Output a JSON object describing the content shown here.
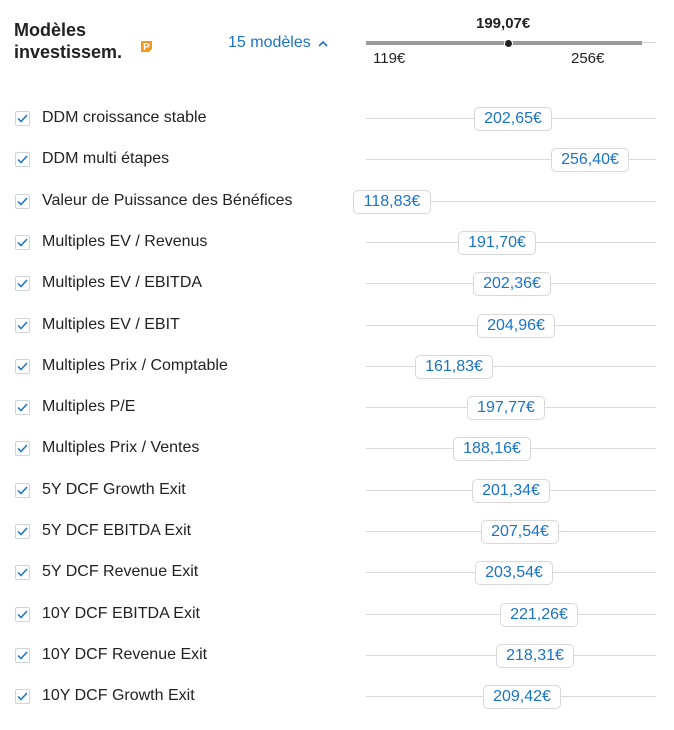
{
  "header": {
    "title_line1": "Modèles",
    "title_line2": "investissem.",
    "pro_badge_icon": "pro-badge-icon",
    "models_toggle_label": "15 modèles",
    "summary_value": "199,07€",
    "range_min": "119€",
    "range_max": "256€"
  },
  "colors": {
    "accent": "#1a73c8",
    "badge": "#f39a1e"
  },
  "models": [
    {
      "label": "DDM croissance stable",
      "value": "202,65€",
      "amount": 202.65,
      "checked": true
    },
    {
      "label": "DDM multi étapes",
      "value": "256,40€",
      "amount": 256.4,
      "checked": true
    },
    {
      "label": "Valeur de Puissance des Bénéfices",
      "value": "118,83€",
      "amount": 118.83,
      "checked": true
    },
    {
      "label": "Multiples EV / Revenus",
      "value": "191,70€",
      "amount": 191.7,
      "checked": true
    },
    {
      "label": "Multiples EV / EBITDA",
      "value": "202,36€",
      "amount": 202.36,
      "checked": true
    },
    {
      "label": "Multiples EV / EBIT",
      "value": "204,96€",
      "amount": 204.96,
      "checked": true
    },
    {
      "label": "Multiples Prix / Comptable",
      "value": "161,83€",
      "amount": 161.83,
      "checked": true
    },
    {
      "label": "Multiples P/E",
      "value": "197,77€",
      "amount": 197.77,
      "checked": true
    },
    {
      "label": "Multiples Prix / Ventes",
      "value": "188,16€",
      "amount": 188.16,
      "checked": true
    },
    {
      "label": "5Y DCF Growth Exit",
      "value": "201,34€",
      "amount": 201.34,
      "checked": true
    },
    {
      "label": "5Y DCF EBITDA Exit",
      "value": "207,54€",
      "amount": 207.54,
      "checked": true
    },
    {
      "label": "5Y DCF Revenue Exit",
      "value": "203,54€",
      "amount": 203.54,
      "checked": true
    },
    {
      "label": "10Y DCF EBITDA Exit",
      "value": "221,26€",
      "amount": 221.26,
      "checked": true
    },
    {
      "label": "10Y DCF Revenue Exit",
      "value": "218,31€",
      "amount": 218.31,
      "checked": true
    },
    {
      "label": "10Y DCF Growth Exit",
      "value": "209,42€",
      "amount": 209.42,
      "checked": true
    }
  ]
}
